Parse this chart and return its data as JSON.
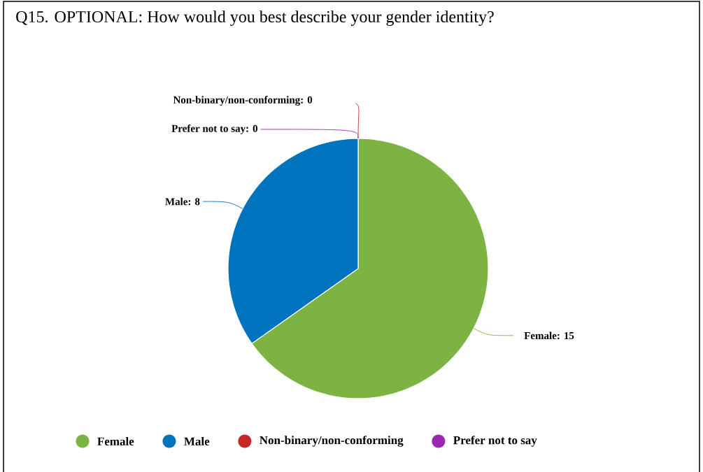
{
  "chart_data": {
    "type": "pie",
    "title": "Q15. OPTIONAL: How would you best describe your gender identity?",
    "categories": [
      "Female",
      "Male",
      "Non-binary/non-conforming",
      "Prefer not to say"
    ],
    "values": [
      15,
      8,
      0,
      0
    ],
    "colors": [
      "#7cb342",
      "#0073bf",
      "#c62828",
      "#9c27b0"
    ],
    "value_labels": [
      "Female: 15",
      "Male: 8",
      "Non-binary/non-conforming: 0",
      "Prefer not to say: 0"
    ],
    "legend": "bottom"
  }
}
